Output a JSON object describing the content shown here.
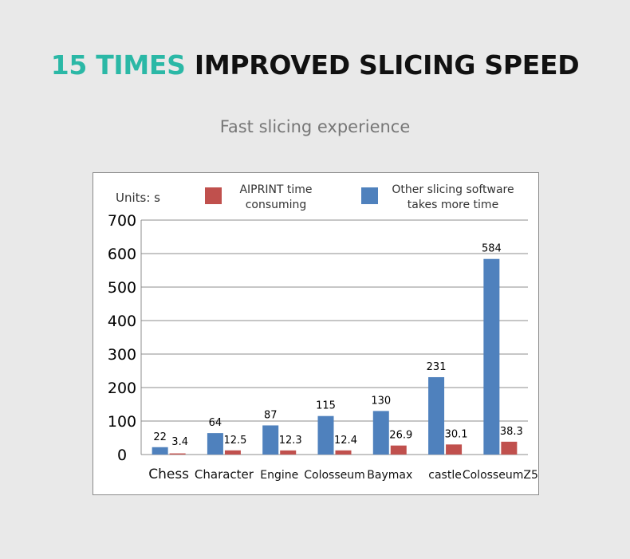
{
  "header": {
    "title_accent": "15 TIMES",
    "title_rest": "IMPROVED SLICING SPEED",
    "subtitle": "Fast slicing experience"
  },
  "chart_data": {
    "type": "bar",
    "units_label": "Units: s",
    "categories": [
      "Chess",
      "Character",
      "Engine",
      "Colosseum",
      "Baymax",
      "castle",
      "ColosseumZ5"
    ],
    "series": [
      {
        "name": "Other slicing software takes more time",
        "legend_lines": [
          "Other slicing software",
          "takes more time"
        ],
        "color": "#4f81bd",
        "values": [
          22,
          64,
          87,
          115,
          130,
          231,
          584
        ]
      },
      {
        "name": "AIPRINT time consuming",
        "legend_lines": [
          "AIPRINT time",
          "consuming"
        ],
        "color": "#c0504d",
        "values": [
          3.4,
          12.5,
          12.3,
          12.4,
          26.9,
          30.1,
          38.3
        ]
      }
    ],
    "legend_order": [
      1,
      0
    ],
    "ylim": [
      0,
      700
    ],
    "yticks": [
      0,
      100,
      200,
      300,
      400,
      500,
      600,
      700
    ],
    "grid": true,
    "legend_position": "top"
  }
}
